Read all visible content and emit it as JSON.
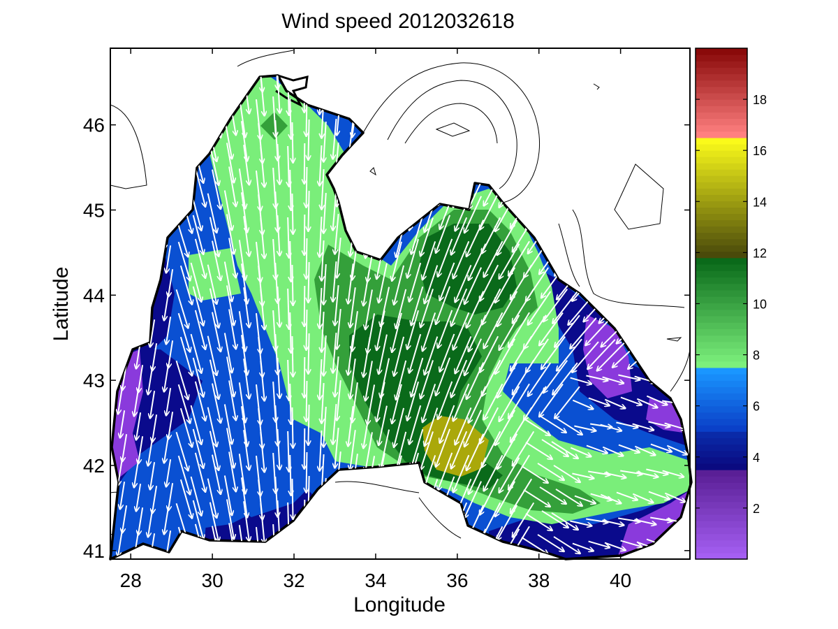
{
  "title": "Wind speed 2012032618",
  "xlabel": "Longitude",
  "ylabel": "Latitude",
  "chart_data": {
    "type": "heatmap",
    "title": "Wind speed 2012032618",
    "xlabel": "Longitude",
    "ylabel": "Latitude",
    "xlim": [
      27.5,
      41.7
    ],
    "ylim": [
      40.9,
      46.9
    ],
    "xticks": [
      "28",
      "30",
      "32",
      "34",
      "36",
      "38",
      "40"
    ],
    "xtick_values": [
      28,
      30,
      32,
      34,
      36,
      38,
      40
    ],
    "yticks": [
      "41",
      "42",
      "43",
      "44",
      "45",
      "46"
    ],
    "ytick_values": [
      41,
      42,
      43,
      44,
      45,
      46
    ],
    "colorbar": {
      "range": [
        0,
        20
      ],
      "ticks": [
        "2",
        "4",
        "6",
        "8",
        "10",
        "12",
        "14",
        "16",
        "18"
      ],
      "tick_values": [
        2,
        4,
        6,
        8,
        10,
        12,
        14,
        16,
        18
      ],
      "bands": [
        {
          "from": 0,
          "to": 3.5,
          "color_low": "#a55ff2",
          "color_high": "#5a1f96"
        },
        {
          "from": 3.5,
          "to": 5,
          "color_low": "#0a0a80",
          "color_high": "#0a2aa8"
        },
        {
          "from": 5,
          "to": 7.5,
          "color_low": "#0a40c8",
          "color_high": "#1a96ff"
        },
        {
          "from": 7.5,
          "to": 11.8,
          "color_low": "#7cf07c",
          "color_high": "#0a6a1a"
        },
        {
          "from": 11.8,
          "to": 16.5,
          "color_low": "#4a4a0a",
          "color_high": "#fafa1a"
        },
        {
          "from": 16.5,
          "to": 20,
          "color_low": "#ff8080",
          "color_high": "#8a0a0a"
        }
      ]
    },
    "grid": false,
    "grid_speed_colors": {
      "purple": "#8a3adc",
      "navy": "#0a0a8c",
      "blue": "#0a50d2",
      "light_green": "#7aee7a",
      "mid_green": "#34a03a",
      "dark_green": "#0a6a1a",
      "olive": "#aaa80a"
    }
  }
}
